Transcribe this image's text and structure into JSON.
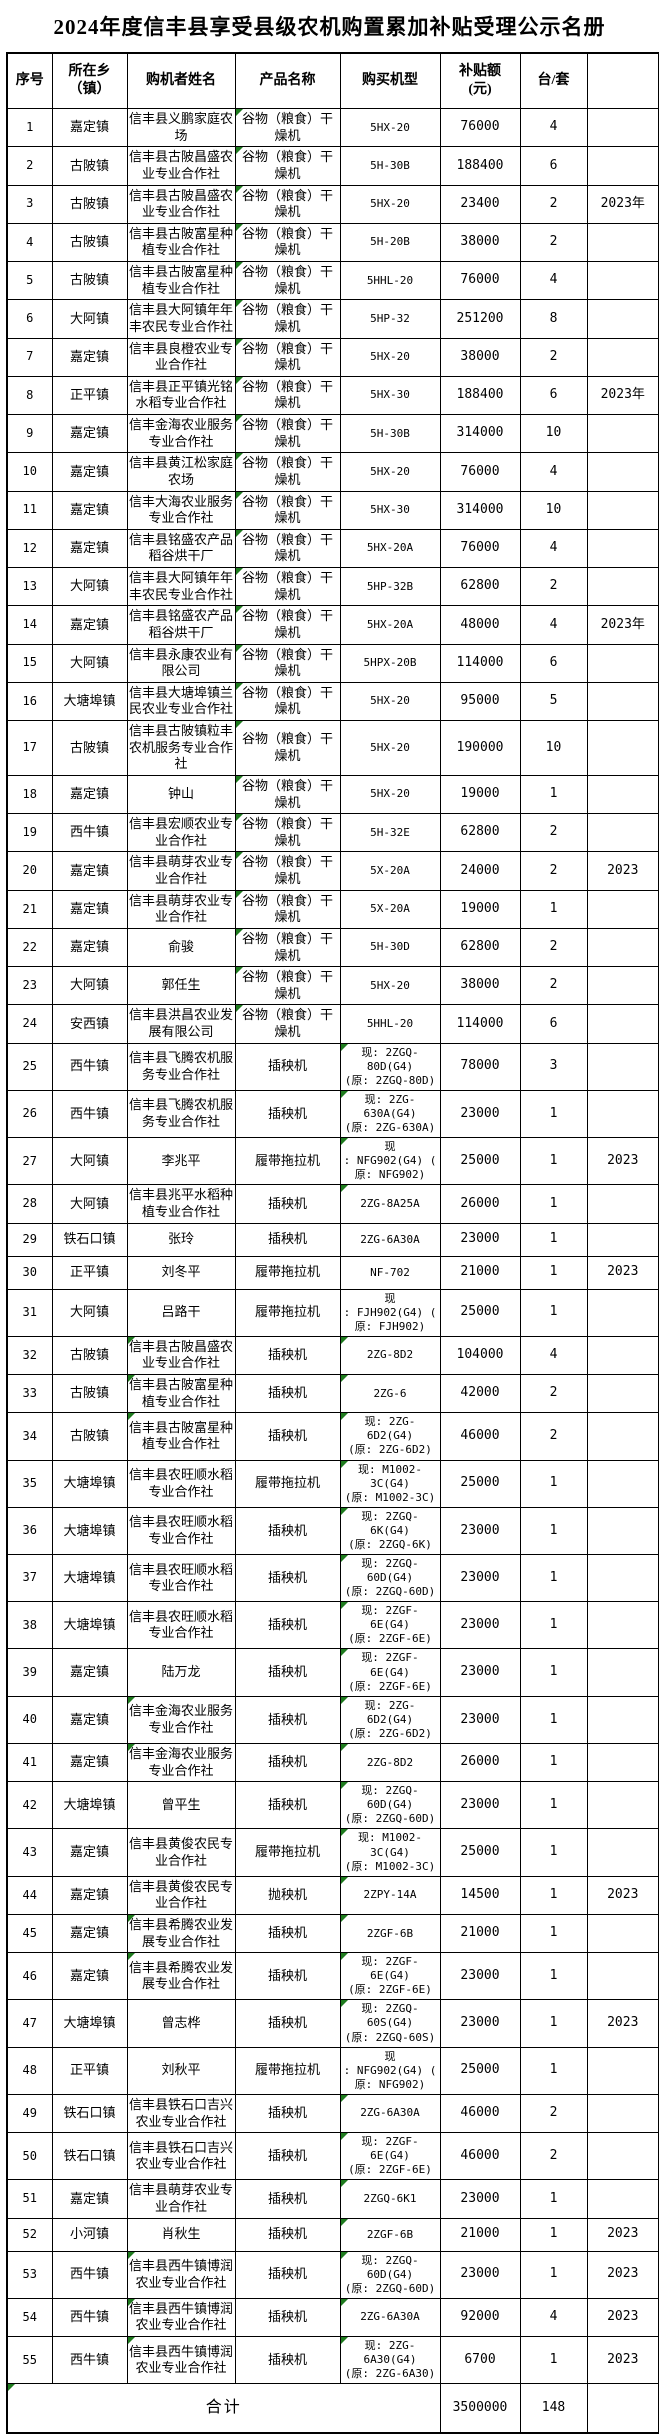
{
  "title": "2024年度信丰县享受县级农机购置累加补贴受理公示名册",
  "marker_color": "#1e7b1e",
  "table": {
    "headers": [
      "序号",
      "所在乡\n（镇）",
      "购机者姓名",
      "产品名称",
      "购买机型",
      "补贴额\n(元)",
      "台/套",
      ""
    ],
    "header_marker_col": 6,
    "rows": [
      {
        "seq": "1",
        "township": "嘉定镇",
        "name": "信丰县义鹏家庭农场",
        "product": "谷物（粮食）干\n燥机",
        "model": "5HX-20",
        "subsidy": "76000",
        "qty": "4",
        "year": "",
        "product_mark": true
      },
      {
        "seq": "2",
        "township": "古陂镇",
        "name": "信丰县古陂昌盛农业专业合作社",
        "product": "谷物（粮食）干\n燥机",
        "model": "5H-30B",
        "subsidy": "188400",
        "qty": "6",
        "year": "",
        "product_mark": true
      },
      {
        "seq": "3",
        "township": "古陂镇",
        "name": "信丰县古陂昌盛农业专业合作社",
        "product": "谷物（粮食）干\n燥机",
        "model": "5HX-20",
        "subsidy": "23400",
        "qty": "2",
        "year": "2023年",
        "product_mark": true
      },
      {
        "seq": "4",
        "township": "古陂镇",
        "name": "信丰县古陂富星种植专业合作社",
        "product": "谷物（粮食）干\n燥机",
        "model": "5H-20B",
        "subsidy": "38000",
        "qty": "2",
        "year": "",
        "product_mark": true
      },
      {
        "seq": "5",
        "township": "古陂镇",
        "name": "信丰县古陂富星种植专业合作社",
        "product": "谷物（粮食）干\n燥机",
        "model": "5HHL-20",
        "subsidy": "76000",
        "qty": "4",
        "year": "",
        "product_mark": true
      },
      {
        "seq": "6",
        "township": "大阿镇",
        "name": "信丰县大阿镇年年丰农民专业合作社",
        "product": "谷物（粮食）干\n燥机",
        "model": "5HP-32",
        "subsidy": "251200",
        "qty": "8",
        "year": "",
        "product_mark": true
      },
      {
        "seq": "7",
        "township": "嘉定镇",
        "name": "信丰县良橙农业专业合作社",
        "product": "谷物（粮食）干\n燥机",
        "model": "5HX-20",
        "subsidy": "38000",
        "qty": "2",
        "year": "",
        "product_mark": true
      },
      {
        "seq": "8",
        "township": "正平镇",
        "name": "信丰县正平镇光铭水稻专业合作社",
        "product": "谷物（粮食）干\n燥机",
        "model": "5HX-30",
        "subsidy": "188400",
        "qty": "6",
        "year": "2023年",
        "product_mark": true
      },
      {
        "seq": "9",
        "township": "嘉定镇",
        "name": "信丰金海农业服务专业合作社",
        "product": "谷物（粮食）干\n燥机",
        "model": "5H-30B",
        "subsidy": "314000",
        "qty": "10",
        "year": "",
        "product_mark": true
      },
      {
        "seq": "10",
        "township": "嘉定镇",
        "name": "信丰县黄江松家庭农场",
        "product": "谷物（粮食）干\n燥机",
        "model": "5HX-20",
        "subsidy": "76000",
        "qty": "4",
        "year": "",
        "product_mark": true
      },
      {
        "seq": "11",
        "township": "嘉定镇",
        "name": "信丰大海农业服务专业合作社",
        "product": "谷物（粮食）干\n燥机",
        "model": "5HX-30",
        "subsidy": "314000",
        "qty": "10",
        "year": "",
        "product_mark": true
      },
      {
        "seq": "12",
        "township": "嘉定镇",
        "name": "信丰县铭盛农产品稻谷烘干厂",
        "product": "谷物（粮食）干\n燥机",
        "model": "5HX-20A",
        "subsidy": "76000",
        "qty": "4",
        "year": "",
        "product_mark": true
      },
      {
        "seq": "13",
        "township": "大阿镇",
        "name": "信丰县大阿镇年年丰农民专业合作社",
        "product": "谷物（粮食）干\n燥机",
        "model": "5HP-32B",
        "subsidy": "62800",
        "qty": "2",
        "year": "",
        "product_mark": true
      },
      {
        "seq": "14",
        "township": "嘉定镇",
        "name": "信丰县铭盛农产品稻谷烘干厂",
        "product": "谷物（粮食）干\n燥机",
        "model": "5HX-20A",
        "subsidy": "48000",
        "qty": "4",
        "year": "2023年",
        "product_mark": true
      },
      {
        "seq": "15",
        "township": "大阿镇",
        "name": "信丰县永康农业有限公司",
        "product": "谷物（粮食）干\n燥机",
        "model": "5HPX-20B",
        "subsidy": "114000",
        "qty": "6",
        "year": "",
        "product_mark": true
      },
      {
        "seq": "16",
        "township": "大塘埠镇",
        "name": "信丰县大塘埠镇兰民农业专业合作社",
        "product": "谷物（粮食）干\n燥机",
        "model": "5HX-20",
        "subsidy": "95000",
        "qty": "5",
        "year": "",
        "product_mark": true
      },
      {
        "seq": "17",
        "township": "古陂镇",
        "name": "信丰县古陂镇粒丰农机服务专业合作社",
        "product": "谷物（粮食）干\n燥机",
        "model": "5HX-20",
        "subsidy": "190000",
        "qty": "10",
        "year": "",
        "product_mark": true
      },
      {
        "seq": "18",
        "township": "嘉定镇",
        "name": "钟山",
        "product": "谷物（粮食）干\n燥机",
        "model": "5HX-20",
        "subsidy": "19000",
        "qty": "1",
        "year": "",
        "product_mark": true
      },
      {
        "seq": "19",
        "township": "西牛镇",
        "name": "信丰县宏顺农业专业合作社",
        "product": "谷物（粮食）干\n燥机",
        "model": "5H-32E",
        "subsidy": "62800",
        "qty": "2",
        "year": "",
        "product_mark": true
      },
      {
        "seq": "20",
        "township": "嘉定镇",
        "name": "信丰县萌芽农业专业合作社",
        "product": "谷物（粮食）干\n燥机",
        "model": "5X-20A",
        "subsidy": "24000",
        "qty": "2",
        "year": "2023",
        "product_mark": true
      },
      {
        "seq": "21",
        "township": "嘉定镇",
        "name": "信丰县萌芽农业专业合作社",
        "product": "谷物（粮食）干\n燥机",
        "model": "5X-20A",
        "subsidy": "19000",
        "qty": "1",
        "year": "",
        "product_mark": true
      },
      {
        "seq": "22",
        "township": "嘉定镇",
        "name": "俞骏",
        "product": "谷物（粮食）干\n燥机",
        "model": "5H-30D",
        "subsidy": "62800",
        "qty": "2",
        "year": "",
        "product_mark": true
      },
      {
        "seq": "23",
        "township": "大阿镇",
        "name": "郭任生",
        "product": "谷物（粮食）干\n燥机",
        "model": "5HX-20",
        "subsidy": "38000",
        "qty": "2",
        "year": "",
        "product_mark": true
      },
      {
        "seq": "24",
        "township": "安西镇",
        "name": "信丰县洪昌农业发展有限公司",
        "product": "谷物（粮食）干\n燥机",
        "model": "5HHL-20",
        "subsidy": "114000",
        "qty": "6",
        "year": "",
        "product_mark": true
      },
      {
        "seq": "25",
        "township": "西牛镇",
        "name": "信丰县飞腾农机服务专业合作社",
        "product": "插秧机",
        "model": "现: 2ZGQ-\n80D(G4)\n(原: 2ZGQ-80D)",
        "subsidy": "78000",
        "qty": "3",
        "year": "",
        "model_mark": true
      },
      {
        "seq": "26",
        "township": "西牛镇",
        "name": "信丰县飞腾农机服务专业合作社",
        "product": "插秧机",
        "model": "现: 2ZG-\n630A(G4)\n(原: 2ZG-630A)",
        "subsidy": "23000",
        "qty": "1",
        "year": "",
        "model_mark": true
      },
      {
        "seq": "27",
        "township": "大阿镇",
        "name": "李兆平",
        "product": "履带拖拉机",
        "model": "现\n: NFG902(G4) (\n原: NFG902)",
        "subsidy": "25000",
        "qty": "1",
        "year": "2023",
        "model_mark": true
      },
      {
        "seq": "28",
        "township": "大阿镇",
        "name": "信丰县兆平水稻种植专业合作社",
        "product": "插秧机",
        "model": "2ZG-8A25A",
        "subsidy": "26000",
        "qty": "1",
        "year": "",
        "model_mark": true
      },
      {
        "seq": "29",
        "township": "铁石口镇",
        "name": "张玲",
        "product": "插秧机",
        "model": "2ZG-6A30A",
        "subsidy": "23000",
        "qty": "1",
        "year": ""
      },
      {
        "seq": "30",
        "township": "正平镇",
        "name": "刘冬平",
        "product": "履带拖拉机",
        "model": "NF-702",
        "subsidy": "21000",
        "qty": "1",
        "year": "2023"
      },
      {
        "seq": "31",
        "township": "大阿镇",
        "name": "吕路干",
        "product": "履带拖拉机",
        "model": "现\n: FJH902(G4) (\n原: FJH902)",
        "subsidy": "25000",
        "qty": "1",
        "year": ""
      },
      {
        "seq": "32",
        "township": "古陂镇",
        "name": "信丰县古陂昌盛农业专业合作社",
        "product": "插秧机",
        "model": "2ZG-8D2",
        "subsidy": "104000",
        "qty": "4",
        "year": "",
        "name_mark": true,
        "model_mark": true
      },
      {
        "seq": "33",
        "township": "古陂镇",
        "name": "信丰县古陂富星种植专业合作社",
        "product": "插秧机",
        "model": "2ZG-6",
        "subsidy": "42000",
        "qty": "2",
        "year": "",
        "name_mark": true,
        "model_mark": true
      },
      {
        "seq": "34",
        "township": "古陂镇",
        "name": "信丰县古陂富星种植专业合作社",
        "product": "插秧机",
        "model": "现: 2ZG-\n6D2(G4)\n(原: 2ZG-6D2)",
        "subsidy": "46000",
        "qty": "2",
        "year": "",
        "name_mark": true,
        "model_mark": true
      },
      {
        "seq": "35",
        "township": "大塘埠镇",
        "name": "信丰县农旺顺水稻专业合作社",
        "product": "履带拖拉机",
        "model": "现: M1002-\n3C(G4)\n(原: M1002-3C)",
        "subsidy": "25000",
        "qty": "1",
        "year": "",
        "model_mark": true
      },
      {
        "seq": "36",
        "township": "大塘埠镇",
        "name": "信丰县农旺顺水稻专业合作社",
        "product": "插秧机",
        "model": "现: 2ZGQ-\n6K(G4)\n(原: 2ZGQ-6K)",
        "subsidy": "23000",
        "qty": "1",
        "year": "",
        "model_mark": true
      },
      {
        "seq": "37",
        "township": "大塘埠镇",
        "name": "信丰县农旺顺水稻专业合作社",
        "product": "插秧机",
        "model": "现: 2ZGQ-\n60D(G4)\n(原: 2ZGQ-60D)",
        "subsidy": "23000",
        "qty": "1",
        "year": "",
        "model_mark": true
      },
      {
        "seq": "38",
        "township": "大塘埠镇",
        "name": "信丰县农旺顺水稻专业合作社",
        "product": "插秧机",
        "model": "现: 2ZGF-\n6E(G4)\n(原: 2ZGF-6E)",
        "subsidy": "23000",
        "qty": "1",
        "year": "",
        "model_mark": true
      },
      {
        "seq": "39",
        "township": "嘉定镇",
        "name": "陆万龙",
        "product": "插秧机",
        "model": "现: 2ZGF-\n6E(G4)\n(原: 2ZGF-6E)",
        "subsidy": "23000",
        "qty": "1",
        "year": "",
        "model_mark": true
      },
      {
        "seq": "40",
        "township": "嘉定镇",
        "name": "信丰金海农业服务专业合作社",
        "product": "插秧机",
        "model": "现: 2ZG-\n6D2(G4)\n(原: 2ZG-6D2)",
        "subsidy": "23000",
        "qty": "1",
        "year": "",
        "name_mark": true,
        "model_mark": true
      },
      {
        "seq": "41",
        "township": "嘉定镇",
        "name": "信丰金海农业服务专业合作社",
        "product": "插秧机",
        "model": "2ZG-8D2",
        "subsidy": "26000",
        "qty": "1",
        "year": "",
        "name_mark": true,
        "model_mark": true
      },
      {
        "seq": "42",
        "township": "大塘埠镇",
        "name": "曾平生",
        "product": "插秧机",
        "model": "现: 2ZGQ-\n60D(G4)\n(原: 2ZGQ-60D)",
        "subsidy": "23000",
        "qty": "1",
        "year": "",
        "model_mark": true
      },
      {
        "seq": "43",
        "township": "嘉定镇",
        "name": "信丰县黄俊农民专业合作社",
        "product": "履带拖拉机",
        "model": "现: M1002-\n3C(G4)\n(原: M1002-3C)",
        "subsidy": "25000",
        "qty": "1",
        "year": "",
        "model_mark": true
      },
      {
        "seq": "44",
        "township": "嘉定镇",
        "name": "信丰县黄俊农民专业合作社",
        "product": "抛秧机",
        "model": "2ZPY-14A",
        "subsidy": "14500",
        "qty": "1",
        "year": "2023",
        "model_mark": true
      },
      {
        "seq": "45",
        "township": "嘉定镇",
        "name": "信丰县希腾农业发展专业合作社",
        "product": "插秧机",
        "model": "2ZGF-6B",
        "subsidy": "21000",
        "qty": "1",
        "year": "",
        "name_mark": true,
        "model_mark": true
      },
      {
        "seq": "46",
        "township": "嘉定镇",
        "name": "信丰县希腾农业发展专业合作社",
        "product": "插秧机",
        "model": "现: 2ZGF-\n6E(G4)\n(原: 2ZGF-6E)",
        "subsidy": "23000",
        "qty": "1",
        "year": "",
        "name_mark": true,
        "model_mark": true
      },
      {
        "seq": "47",
        "township": "大塘埠镇",
        "name": "曾志桦",
        "product": "插秧机",
        "model": "现: 2ZGQ-\n60S(G4)\n(原: 2ZGQ-60S)",
        "subsidy": "23000",
        "qty": "1",
        "year": "2023",
        "model_mark": true
      },
      {
        "seq": "48",
        "township": "正平镇",
        "name": "刘秋平",
        "product": "履带拖拉机",
        "model": "现\n: NFG902(G4) (\n原: NFG902)",
        "subsidy": "25000",
        "qty": "1",
        "year": ""
      },
      {
        "seq": "49",
        "township": "铁石口镇",
        "name": "信丰县铁石口吉兴农业专业合作社",
        "product": "插秧机",
        "model": "2ZG-6A30A",
        "subsidy": "46000",
        "qty": "2",
        "year": "",
        "model_mark": true
      },
      {
        "seq": "50",
        "township": "铁石口镇",
        "name": "信丰县铁石口吉兴农业专业合作社",
        "product": "插秧机",
        "model": "现: 2ZGF-\n6E(G4)\n(原: 2ZGF-6E)",
        "subsidy": "46000",
        "qty": "2",
        "year": "",
        "model_mark": true
      },
      {
        "seq": "51",
        "township": "嘉定镇",
        "name": "信丰县萌芽农业专业合作社",
        "product": "插秧机",
        "model": "2ZGQ-6K1",
        "subsidy": "23000",
        "qty": "1",
        "year": "",
        "model_mark": true
      },
      {
        "seq": "52",
        "township": "小河镇",
        "name": "肖秋生",
        "product": "插秧机",
        "model": "2ZGF-6B",
        "subsidy": "21000",
        "qty": "1",
        "year": "2023",
        "model_mark": true
      },
      {
        "seq": "53",
        "township": "西牛镇",
        "name": "信丰县西牛镇博润农业专业合作社",
        "product": "插秧机",
        "model": "现: 2ZGQ-\n60D(G4)\n(原: 2ZGQ-60D)",
        "subsidy": "23000",
        "qty": "1",
        "year": "2023",
        "name_mark": true,
        "model_mark": true
      },
      {
        "seq": "54",
        "township": "西牛镇",
        "name": "信丰县西牛镇博润农业专业合作社",
        "product": "插秧机",
        "model": "2ZG-6A30A",
        "subsidy": "92000",
        "qty": "4",
        "year": "2023",
        "name_mark": true,
        "model_mark": true
      },
      {
        "seq": "55",
        "township": "西牛镇",
        "name": "信丰县西牛镇博润农业专业合作社",
        "product": "插秧机",
        "model": "现: 2ZG-\n6A30(G4)\n(原: 2ZG-6A30)",
        "subsidy": "6700",
        "qty": "1",
        "year": "2023",
        "name_mark": true,
        "model_mark": true
      }
    ],
    "total": {
      "label": "合计",
      "subsidy": "3500000",
      "qty": "148",
      "year": "",
      "marker": true
    }
  }
}
